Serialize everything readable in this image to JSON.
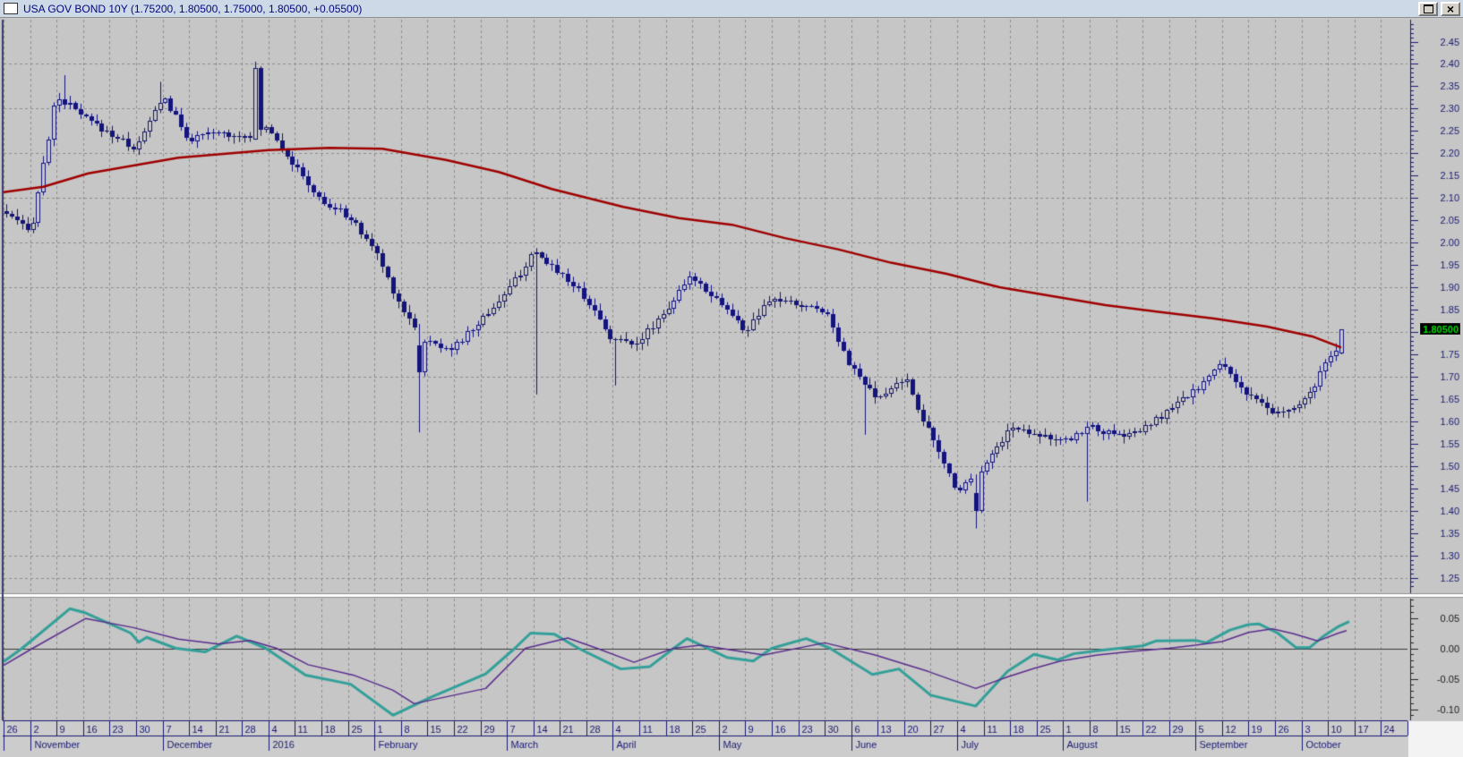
{
  "window": {
    "title": "USA GOV BOND 10Y (1.75200, 1.80500, 1.75000, 1.80500, +0.05500)",
    "controls": {
      "maximize_icon": "maximize",
      "close_icon": "×"
    }
  },
  "chart_data": {
    "type": "candlestick",
    "title": "USA GOV BOND 10Y",
    "quote": {
      "open": 1.752,
      "high": 1.805,
      "low": 1.75,
      "close": 1.805,
      "change": "+0.05500"
    },
    "last_price_label": "1.80500",
    "y_axis": {
      "min": 1.25,
      "max": 2.45,
      "label_step": 0.05,
      "tick_step": 0.01,
      "labels": [
        "2.45",
        "2.40",
        "2.35",
        "2.30",
        "2.25",
        "2.20",
        "2.15",
        "2.10",
        "2.05",
        "2.00",
        "1.95",
        "1.90",
        "1.85",
        "1.80",
        "1.75",
        "1.70",
        "1.65",
        "1.60",
        "1.55",
        "1.50",
        "1.45",
        "1.40",
        "1.35",
        "1.30",
        "1.25"
      ],
      "grid_levels": [
        2.4,
        2.3,
        2.2,
        2.1,
        2.0,
        1.9,
        1.8,
        1.7,
        1.6,
        1.5,
        1.4,
        1.3,
        1.25
      ]
    },
    "lower_axis": {
      "labels": [
        "0.05",
        "0.00",
        "-0.05",
        "-0.10"
      ],
      "values": [
        0.05,
        0.0,
        -0.05,
        -0.1
      ],
      "tick_step": 0.01,
      "zero_line": 0.0
    },
    "x_axis": {
      "week_labels": [
        "26",
        "2",
        "9",
        "16",
        "23",
        "30",
        "7",
        "14",
        "21",
        "28",
        "4",
        "11",
        "18",
        "25",
        "1",
        "8",
        "15",
        "22",
        "29",
        "7",
        "14",
        "21",
        "28",
        "4",
        "11",
        "18",
        "25",
        "2",
        "9",
        "16",
        "23",
        "30",
        "6",
        "13",
        "20",
        "27",
        "4",
        "11",
        "18",
        "25",
        "1",
        "8",
        "15",
        "22",
        "29",
        "5",
        "12",
        "19",
        "26",
        "3",
        "10",
        "17",
        "24"
      ],
      "months": [
        [
          "",
          1
        ],
        [
          "November",
          5
        ],
        [
          "December",
          4
        ],
        [
          "2016",
          4
        ],
        [
          "February",
          5
        ],
        [
          "March",
          4
        ],
        [
          "April",
          4
        ],
        [
          "May",
          5
        ],
        [
          "June",
          4
        ],
        [
          "July",
          4
        ],
        [
          "August",
          5
        ],
        [
          "September",
          4
        ],
        [
          "October",
          4
        ]
      ]
    },
    "series": {
      "weekly_close": [
        2.07,
        2.02,
        2.33,
        2.28,
        2.245,
        2.21,
        2.33,
        2.23,
        2.245,
        2.24,
        2.26,
        2.17,
        2.09,
        2.06,
        1.985,
        1.855,
        1.775,
        1.765,
        1.825,
        1.89,
        1.975,
        1.935,
        1.875,
        1.78,
        1.78,
        1.85,
        1.925,
        1.87,
        1.8,
        1.875,
        1.86,
        1.85,
        1.72,
        1.645,
        1.7,
        1.565,
        1.445,
        1.5,
        1.585,
        1.575,
        1.55,
        1.59,
        1.565,
        1.58,
        1.625,
        1.67,
        1.73,
        1.655,
        1.615,
        1.635,
        1.735,
        1.81
      ],
      "n_days": 253,
      "spikes": [
        {
          "week": 2,
          "day": 1,
          "high": 2.375
        },
        {
          "week": 5,
          "day": 4,
          "high": 2.36
        },
        {
          "week": 9,
          "day": 2,
          "open": 2.23,
          "close": 2.39,
          "high": 2.405
        },
        {
          "week": 15,
          "day": 3,
          "open": 1.77,
          "close": 1.71,
          "low": 1.575
        },
        {
          "week": 20,
          "day": 0,
          "low": 1.66
        },
        {
          "week": 23,
          "day": 0,
          "low": 1.68
        },
        {
          "week": 32,
          "day": 2,
          "low": 1.57
        },
        {
          "week": 36,
          "day": 3,
          "open": 1.44,
          "close": 1.4,
          "low": 1.36
        },
        {
          "week": 40,
          "day": 4,
          "low": 1.42
        }
      ],
      "ma_red": [
        [
          0,
          2.113
        ],
        [
          1.5,
          2.125
        ],
        [
          3.2,
          2.155
        ],
        [
          6.6,
          2.19
        ],
        [
          10,
          2.207
        ],
        [
          12.3,
          2.212
        ],
        [
          14.3,
          2.21
        ],
        [
          16.7,
          2.185
        ],
        [
          18.7,
          2.158
        ],
        [
          20.7,
          2.12
        ],
        [
          23.4,
          2.08
        ],
        [
          25.5,
          2.055
        ],
        [
          27.5,
          2.04
        ],
        [
          29.5,
          2.01
        ],
        [
          31.5,
          1.985
        ],
        [
          33.5,
          1.955
        ],
        [
          35.6,
          1.93
        ],
        [
          37.6,
          1.9
        ],
        [
          39.6,
          1.88
        ],
        [
          41.6,
          1.86
        ],
        [
          43.6,
          1.845
        ],
        [
          45.7,
          1.83
        ],
        [
          47.7,
          1.812
        ],
        [
          49.4,
          1.79
        ],
        [
          50.5,
          1.765
        ]
      ],
      "macd_teal": [
        [
          0,
          -0.022
        ],
        [
          0.7,
          0
        ],
        [
          2.5,
          0.065
        ],
        [
          3.1,
          0.058
        ],
        [
          4.8,
          0.025
        ],
        [
          5.1,
          0.01
        ],
        [
          5.4,
          0.018
        ],
        [
          6.5,
          0
        ],
        [
          7.6,
          -0.006
        ],
        [
          8.8,
          0.02
        ],
        [
          9.9,
          0
        ],
        [
          11.4,
          -0.044
        ],
        [
          13.1,
          -0.059
        ],
        [
          14.7,
          -0.11
        ],
        [
          16.1,
          -0.081
        ],
        [
          18.2,
          -0.042
        ],
        [
          19.3,
          0
        ],
        [
          19.9,
          0.025
        ],
        [
          20.8,
          0.023
        ],
        [
          21.7,
          0
        ],
        [
          23.3,
          -0.034
        ],
        [
          24.4,
          -0.03
        ],
        [
          25.3,
          0
        ],
        [
          25.8,
          0.016
        ],
        [
          27.3,
          -0.015
        ],
        [
          28.3,
          -0.021
        ],
        [
          29.0,
          0
        ],
        [
          30.3,
          0.016
        ],
        [
          31.2,
          0
        ],
        [
          32.8,
          -0.043
        ],
        [
          33.8,
          -0.034
        ],
        [
          35.0,
          -0.077
        ],
        [
          36.7,
          -0.095
        ],
        [
          37.9,
          -0.038
        ],
        [
          38.9,
          -0.01
        ],
        [
          39.8,
          -0.019
        ],
        [
          40.4,
          -0.009
        ],
        [
          41.5,
          -0.003
        ],
        [
          43.0,
          0.004
        ],
        [
          43.5,
          0.012
        ],
        [
          45.0,
          0.013
        ],
        [
          45.4,
          0.009
        ],
        [
          46.3,
          0.03
        ],
        [
          47.0,
          0.039
        ],
        [
          47.4,
          0.04
        ],
        [
          48.1,
          0.025
        ],
        [
          48.8,
          0.001
        ],
        [
          49.3,
          0.001
        ],
        [
          49.8,
          0.019
        ],
        [
          50.4,
          0.036
        ],
        [
          50.8,
          0.044
        ]
      ],
      "signal_purple": [
        [
          0,
          -0.028
        ],
        [
          1.1,
          0
        ],
        [
          3.1,
          0.049
        ],
        [
          4.9,
          0.034
        ],
        [
          6.6,
          0.015
        ],
        [
          8.1,
          0.007
        ],
        [
          9.3,
          0.013
        ],
        [
          10.3,
          0
        ],
        [
          11.5,
          -0.027
        ],
        [
          13.2,
          -0.044
        ],
        [
          14.7,
          -0.069
        ],
        [
          15.5,
          -0.091
        ],
        [
          18.2,
          -0.066
        ],
        [
          19.7,
          0
        ],
        [
          21.3,
          0.017
        ],
        [
          22.4,
          0
        ],
        [
          23.8,
          -0.023
        ],
        [
          25.3,
          0
        ],
        [
          26.3,
          0.005
        ],
        [
          28.7,
          -0.011
        ],
        [
          31.0,
          0.009
        ],
        [
          32.9,
          -0.011
        ],
        [
          34.9,
          -0.038
        ],
        [
          36.7,
          -0.066
        ],
        [
          37.9,
          -0.047
        ],
        [
          38.9,
          -0.033
        ],
        [
          39.9,
          -0.021
        ],
        [
          41.3,
          -0.011
        ],
        [
          42.6,
          -0.005
        ],
        [
          44.0,
          0
        ],
        [
          45.0,
          0.005
        ],
        [
          46.0,
          0.011
        ],
        [
          47.0,
          0.026
        ],
        [
          47.9,
          0.032
        ],
        [
          48.7,
          0.024
        ],
        [
          49.6,
          0.012
        ],
        [
          50.4,
          0.025
        ],
        [
          50.7,
          0.029
        ]
      ]
    },
    "colors": {
      "background": "#c6c6c6",
      "grid": "#8d8d8d",
      "candle": "#14147d",
      "ma": "#a00000",
      "macd": "#33a099",
      "signal": "#5b2d8e",
      "zero_line": "#3a3a3a",
      "axis_text": "#191975",
      "lower_text": "#1a1a1a",
      "axis_spine": "#191975",
      "lower_spine": "#222222",
      "date_text": "#191975",
      "badge_bg": "#000000",
      "badge_text": "#00dd00",
      "rows_bg": "#cccccc",
      "outside_bg": "#f3f3f3",
      "separator_light": "#ffffff",
      "separator_dark": "#8f8f8f"
    }
  }
}
